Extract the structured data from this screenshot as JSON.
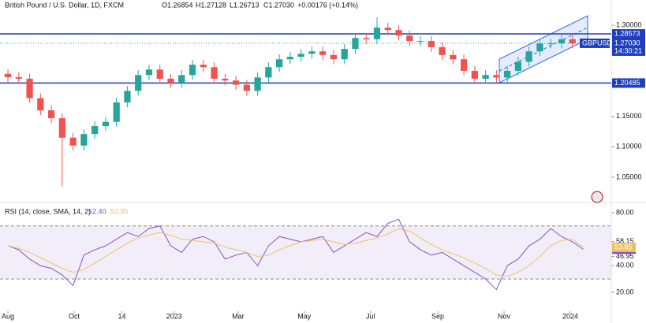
{
  "chart_data": [
    {
      "type": "candlestick",
      "title": "British Pound / U.S. Dollar, 1D, FXCM",
      "ohlc_labels": [
        "O1.26854",
        "H1.27128",
        "L1.26713",
        "C1.27030"
      ],
      "change": "+0.00176 (+0.14%)",
      "symbol": "GBPUSD",
      "countdown": "14:30:21",
      "last_price": {
        "value": 1.2703,
        "label": "1.27030"
      },
      "levels": [
        {
          "value": 1.28573,
          "label": "1.28573"
        },
        {
          "value": 1.20485,
          "label": "1.20485"
        }
      ],
      "up_color": "#26a69a",
      "down_color": "#ef5350",
      "level_color": "#1e3fbf",
      "x": [
        0,
        10,
        20,
        30,
        40,
        50,
        60,
        70,
        80,
        90,
        100,
        110,
        120,
        130,
        140,
        150,
        160,
        170,
        180,
        190,
        200,
        210,
        220,
        230,
        240,
        250,
        260,
        270,
        280,
        290,
        300,
        310,
        320,
        330,
        340,
        350,
        360,
        370,
        380,
        390,
        400,
        410,
        420,
        430,
        440,
        450,
        460,
        470,
        480,
        490,
        500,
        510,
        520,
        530
      ],
      "open": [
        1.22,
        1.2145,
        1.212,
        1.18,
        1.16,
        1.147,
        1.115,
        1.102,
        1.121,
        1.134,
        1.141,
        1.173,
        1.192,
        1.218,
        1.227,
        1.212,
        1.205,
        1.218,
        1.235,
        1.231,
        1.212,
        1.209,
        1.202,
        1.192,
        1.214,
        1.231,
        1.244,
        1.248,
        1.253,
        1.257,
        1.251,
        1.244,
        1.261,
        1.279,
        1.277,
        1.296,
        1.292,
        1.283,
        1.274,
        1.274,
        1.264,
        1.251,
        1.244,
        1.225,
        1.212,
        1.218,
        1.214,
        1.225,
        1.24,
        1.257,
        1.27,
        1.27,
        1.277,
        1.26854
      ],
      "high": [
        1.228,
        1.2225,
        1.22,
        1.188,
        1.168,
        1.155,
        1.123,
        1.129,
        1.142,
        1.149,
        1.181,
        1.2,
        1.226,
        1.235,
        1.235,
        1.22,
        1.226,
        1.243,
        1.243,
        1.239,
        1.22,
        1.217,
        1.21,
        1.222,
        1.239,
        1.252,
        1.256,
        1.261,
        1.265,
        1.265,
        1.259,
        1.269,
        1.287,
        1.287,
        1.313,
        1.304,
        1.3,
        1.291,
        1.282,
        1.282,
        1.272,
        1.259,
        1.252,
        1.233,
        1.226,
        1.226,
        1.233,
        1.248,
        1.265,
        1.278,
        1.278,
        1.285,
        1.285,
        1.27128
      ],
      "low": [
        1.2065,
        1.204,
        1.172,
        1.152,
        1.139,
        1.035,
        1.094,
        1.094,
        1.113,
        1.126,
        1.133,
        1.165,
        1.184,
        1.21,
        1.204,
        1.197,
        1.197,
        1.21,
        1.223,
        1.204,
        1.201,
        1.194,
        1.184,
        1.184,
        1.206,
        1.223,
        1.236,
        1.24,
        1.245,
        1.243,
        1.236,
        1.236,
        1.253,
        1.269,
        1.269,
        1.284,
        1.275,
        1.266,
        1.266,
        1.256,
        1.243,
        1.236,
        1.217,
        1.204,
        1.204,
        1.206,
        1.206,
        1.217,
        1.232,
        1.249,
        1.262,
        1.262,
        1.262,
        1.26713
      ],
      "close": [
        1.2145,
        1.212,
        1.18,
        1.16,
        1.147,
        1.115,
        1.102,
        1.121,
        1.134,
        1.141,
        1.173,
        1.192,
        1.218,
        1.227,
        1.212,
        1.205,
        1.218,
        1.235,
        1.231,
        1.212,
        1.209,
        1.202,
        1.192,
        1.214,
        1.231,
        1.244,
        1.248,
        1.253,
        1.257,
        1.251,
        1.244,
        1.261,
        1.279,
        1.277,
        1.296,
        1.292,
        1.283,
        1.274,
        1.274,
        1.264,
        1.251,
        1.244,
        1.225,
        1.212,
        1.218,
        1.214,
        1.225,
        1.24,
        1.257,
        1.27,
        1.27,
        1.277,
        1.27,
        1.2703
      ],
      "xlim": [
        -7.3,
        555.8
      ],
      "ylim": [
        1.011,
        1.3415
      ],
      "yticks": [
        {
          "value": 1.3,
          "label": "1.30000"
        },
        {
          "value": 1.15,
          "label": "1.15000"
        },
        {
          "value": 1.1,
          "label": "1.10000"
        },
        {
          "value": 1.05,
          "label": "1.05000"
        }
      ]
    },
    {
      "type": "line",
      "title": "RSI (14, close, SMA, 14, 2)",
      "x": [
        0,
        10,
        20,
        30,
        40,
        50,
        60,
        70,
        80,
        90,
        100,
        110,
        120,
        130,
        140,
        150,
        160,
        170,
        180,
        190,
        200,
        210,
        220,
        230,
        240,
        250,
        260,
        270,
        280,
        290,
        300,
        310,
        320,
        330,
        340,
        350,
        360,
        370,
        380,
        390,
        400,
        410,
        420,
        430,
        440,
        450,
        460,
        470,
        480,
        490,
        500,
        510,
        520,
        530
      ],
      "series": [
        {
          "name": "RSI",
          "color": "#7e57c2",
          "value_label": "52.40",
          "values": [
            55,
            52,
            45,
            40,
            38,
            33,
            25,
            48,
            52,
            55,
            60,
            65,
            62,
            68,
            70,
            55,
            50,
            60,
            62,
            58,
            45,
            48,
            50,
            40,
            55,
            62,
            60,
            58,
            60,
            62,
            50,
            55,
            60,
            65,
            62,
            72,
            75,
            58,
            52,
            48,
            50,
            45,
            40,
            35,
            30,
            22,
            40,
            45,
            55,
            60,
            68,
            62,
            58,
            52.4
          ]
        },
        {
          "name": "SMA",
          "color": "#f0c060",
          "value_label": "53.85",
          "values": [
            55,
            53,
            50,
            46,
            42,
            38,
            35,
            37,
            42,
            47,
            52,
            57,
            61,
            63,
            65,
            63,
            60,
            59,
            58,
            57,
            54,
            52,
            50,
            47,
            48,
            52,
            55,
            58,
            59,
            60,
            58,
            56,
            57,
            59,
            61,
            64,
            68,
            66,
            61,
            56,
            52,
            49,
            46,
            42,
            38,
            33,
            32,
            35,
            40,
            47,
            55,
            59,
            60,
            53.85
          ]
        }
      ],
      "bands": [
        {
          "value": 70
        },
        {
          "value": 30
        }
      ],
      "levels": [
        {
          "value": 58.15,
          "label": "58.15"
        },
        {
          "value": 46.95,
          "label": "46.95"
        }
      ],
      "xlim": [
        -7.3,
        555.8
      ],
      "ylim": [
        5.7,
        85.9
      ],
      "yticks": [
        {
          "value": 80,
          "label": "80.00"
        },
        {
          "value": 40,
          "label": "40.00"
        },
        {
          "value": 20,
          "label": "20.00"
        }
      ],
      "xticks": [
        {
          "value": 0,
          "label": "Aug"
        },
        {
          "value": 61,
          "label": "Oct"
        },
        {
          "value": 105,
          "label": "14"
        },
        {
          "value": 153,
          "label": "2023"
        },
        {
          "value": 212,
          "label": "Mar"
        },
        {
          "value": 273,
          "label": "May"
        },
        {
          "value": 334,
          "label": "Jul"
        },
        {
          "value": 396,
          "label": "Sep"
        },
        {
          "value": 457,
          "label": "Nov"
        },
        {
          "value": 518,
          "label": "2024"
        }
      ]
    }
  ]
}
